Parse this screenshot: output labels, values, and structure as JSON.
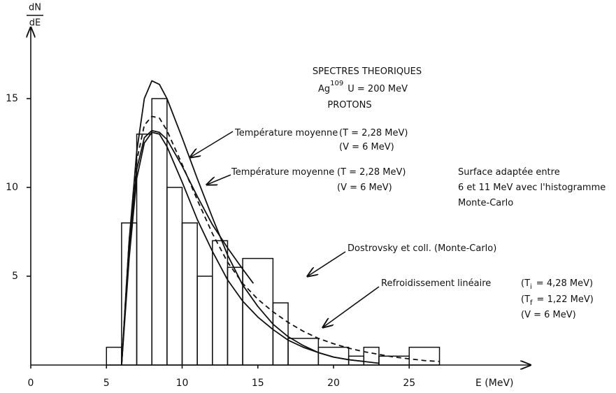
{
  "chart_data": {
    "type": "histogram",
    "title_lines": [
      [
        "SPECTRES THEORIQUES"
      ],
      [
        "Ag",
        "109",
        "U = 200 MeV"
      ],
      [
        "PROTONS"
      ]
    ],
    "ylabel": {
      "numerator": "dN",
      "denominator": "dE"
    },
    "xlabel": "E (MeV)",
    "xlim": [
      0,
      33
    ],
    "ylim": [
      0,
      19
    ],
    "xticks": [
      0,
      5,
      10,
      15,
      20,
      25
    ],
    "yticks": [
      5,
      10,
      15
    ],
    "bins": [
      5,
      6,
      7,
      8,
      9,
      10,
      11,
      12,
      13,
      14,
      16,
      17,
      19,
      21,
      22,
      23,
      25,
      27
    ],
    "counts": [
      1,
      8,
      13,
      15,
      10,
      8,
      5,
      7,
      5.5,
      6,
      3.5,
      1.5,
      1,
      0.5,
      1,
      0.5,
      1
    ],
    "lines": [
      {
        "dash": false,
        "x": [
          6,
          6.5,
          7,
          7.5,
          8,
          8.5,
          9,
          10,
          11,
          12,
          13,
          14,
          15,
          16,
          17,
          18,
          19,
          20,
          21,
          22
        ],
        "values": [
          0,
          7,
          12,
          15,
          16,
          15.8,
          15,
          12.8,
          10.5,
          8.3,
          6.2,
          4.5,
          3.3,
          2.3,
          1.6,
          1.1,
          0.7,
          0.45,
          0.3,
          0.2
        ]
      },
      {
        "dash": false,
        "x": [
          6,
          6.5,
          7,
          7.5,
          8,
          8.5,
          9,
          10,
          11,
          12,
          13,
          14,
          14.7
        ],
        "values": [
          0,
          6.5,
          11,
          12.8,
          13.2,
          13.1,
          12.7,
          11.2,
          9.5,
          7.9,
          6.6,
          5.4,
          4.6
        ]
      },
      {
        "dash": true,
        "x": [
          6,
          6.5,
          7,
          7.5,
          8,
          8.5,
          9,
          10,
          11,
          12,
          13,
          14,
          15,
          16,
          17,
          18,
          19,
          20,
          21,
          22,
          23,
          24,
          25,
          26,
          27
        ],
        "values": [
          0,
          7,
          11.5,
          13.5,
          14,
          13.9,
          13.2,
          11.3,
          9.3,
          7.4,
          5.8,
          4.6,
          3.7,
          3,
          2.4,
          1.9,
          1.5,
          1.2,
          0.95,
          0.75,
          0.6,
          0.45,
          0.35,
          0.25,
          0.2
        ]
      },
      {
        "dash": false,
        "x": [
          6,
          6.5,
          7,
          7.5,
          8,
          8.5,
          9,
          10,
          11,
          12,
          13,
          14,
          15,
          16,
          17,
          18,
          19,
          20,
          21,
          22,
          23
        ],
        "values": [
          0,
          6,
          10.5,
          12.5,
          13.1,
          13,
          12.3,
          10.3,
          8.2,
          6.4,
          4.8,
          3.6,
          2.7,
          2,
          1.4,
          1,
          0.7,
          0.45,
          0.3,
          0.2,
          0.1
        ]
      }
    ],
    "annotations": [
      {
        "lines": [
          [
            "Température moyenne"
          ],
          [
            "(T = 2,28 MeV)"
          ],
          [
            "(V = 6 MeV)"
          ]
        ]
      },
      {
        "lines": [
          [
            "Température moyenne"
          ],
          [
            "(T = 2,28 MeV)"
          ],
          [
            "(V = 6 MeV)"
          ],
          [
            "Surface adaptée entre"
          ],
          [
            "6 et 11 MeV avec l'histogramme"
          ],
          [
            "Monte-Carlo"
          ]
        ]
      },
      {
        "lines": [
          [
            "Dostrovsky et coll. (Monte-Carlo)"
          ]
        ]
      },
      {
        "lines": [
          [
            "Refroidissement linéaire"
          ],
          [
            "(T",
            "i",
            "= 4,28 MeV)"
          ],
          [
            "(T",
            "f",
            "= 1,22 MeV)"
          ],
          [
            "(V = 6 MeV)"
          ]
        ]
      }
    ]
  }
}
